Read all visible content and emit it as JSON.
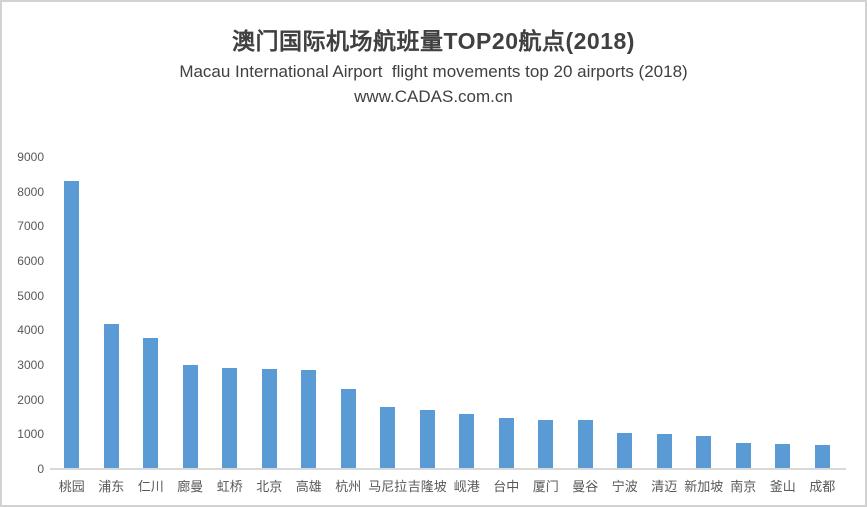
{
  "header": {
    "title": "澳门国际机场航班量TOP20航点(2018)",
    "subtitle": "Macau International Airport  flight movements top 20 airports (2018)",
    "source": "www.CADAS.com.cn"
  },
  "chart_data": {
    "type": "bar",
    "title": "澳门国际机场航班量TOP20航点(2018)",
    "subtitle": "Macau International Airport  flight movements top 20 airports (2018)",
    "source_line": "www.CADAS.com.cn",
    "categories": [
      "桃园",
      "浦东",
      "仁川",
      "廊曼",
      "虹桥",
      "北京",
      "高雄",
      "杭州",
      "马尼拉",
      "吉隆坡",
      "岘港",
      "台中",
      "厦门",
      "曼谷",
      "宁波",
      "清迈",
      "新加坡",
      "南京",
      "釜山",
      "成都"
    ],
    "values": [
      8300,
      4170,
      3770,
      2990,
      2900,
      2880,
      2850,
      2300,
      1780,
      1700,
      1580,
      1460,
      1410,
      1400,
      1040,
      1010,
      960,
      740,
      720,
      700
    ],
    "xlabel": "",
    "ylabel": "",
    "ylim": [
      0,
      9000
    ],
    "ytick_step": 1000,
    "yticks": [
      0,
      1000,
      2000,
      3000,
      4000,
      5000,
      6000,
      7000,
      8000,
      9000
    ],
    "grid": false,
    "legend": false,
    "bar_color": "#5B9BD5",
    "axis_line_color": "#D9D9D9",
    "tick_label_color": "#595959",
    "category_label_color": "#595959",
    "title_color": "#404040"
  }
}
